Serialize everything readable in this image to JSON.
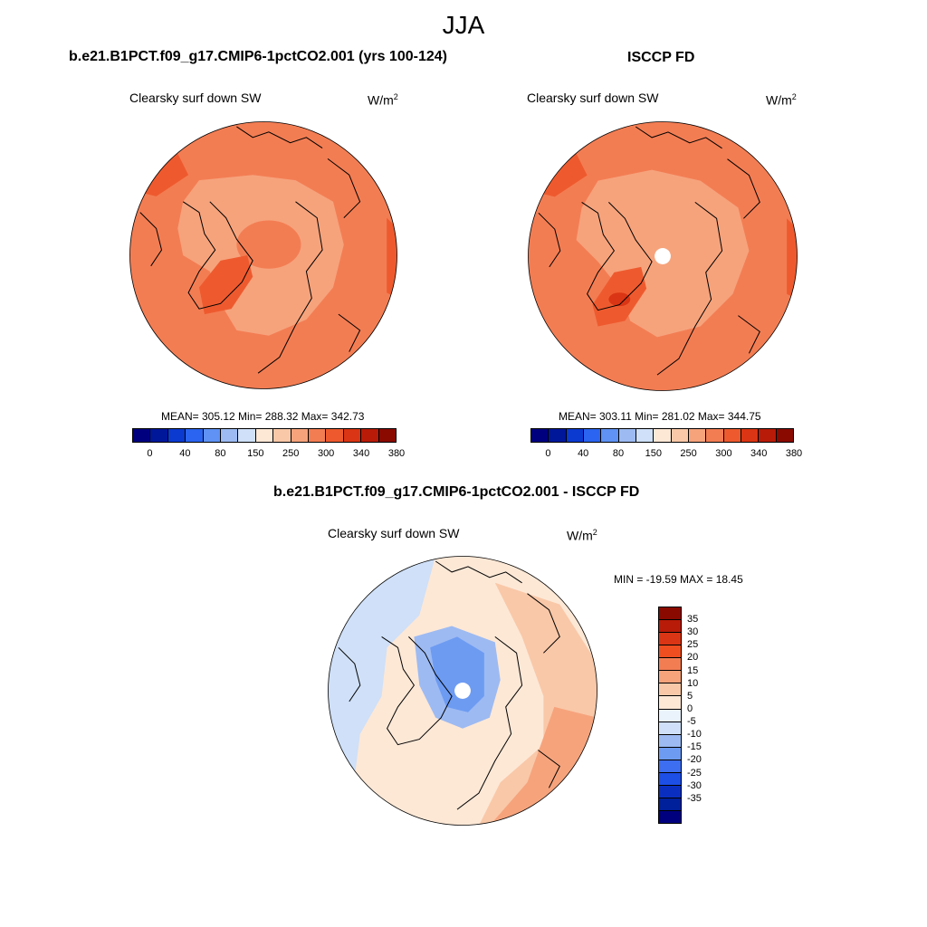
{
  "title": "JJA",
  "colors": {
    "abs_levels": [
      "#00007f",
      "#00179a",
      "#0a3ad0",
      "#2a64f0",
      "#5f92f4",
      "#9dbaf2",
      "#cfe0f8",
      "#fde8d6",
      "#f9c8a8",
      "#f6a37c",
      "#f37d53",
      "#ee5a2e",
      "#da3514",
      "#b81b08",
      "#8a0a00"
    ],
    "diff_levels": [
      "#8a0a00",
      "#b81b08",
      "#da3514",
      "#ee4e20",
      "#f37d53",
      "#f6a37c",
      "#f9c8a8",
      "#fde8d6",
      "#eaf2fb",
      "#cfe0f8",
      "#9dbaf2",
      "#6d9bf2",
      "#3d6df0",
      "#1d4ee6",
      "#0a2fc0",
      "#001f9a",
      "#00007f"
    ],
    "coast": "#000000",
    "missing": "#ffffff"
  },
  "chart_data": [
    {
      "type": "heatmap",
      "projection": "north-polar-stereographic",
      "title": "b.e21.B1PCT.f09_g17.CMIP6-1pctCO2.001 (yrs 100-124)",
      "subtitle": "Clearsky surf down SW",
      "units": "W/m",
      "units_sup": "2",
      "stats": {
        "mean": 305.12,
        "min": 288.32,
        "max": 342.73
      },
      "stats_text": "MEAN= 305.12  Min= 288.32  Max= 342.73",
      "colorbar": {
        "orientation": "horizontal",
        "n_colors": 15,
        "tick_labels": [
          "0",
          "40",
          "80",
          "150",
          "250",
          "300",
          "340",
          "380"
        ]
      }
    },
    {
      "type": "heatmap",
      "projection": "north-polar-stereographic",
      "title": "ISCCP FD",
      "subtitle": "Clearsky surf down SW",
      "units": "W/m",
      "units_sup": "2",
      "stats": {
        "mean": 303.11,
        "min": 281.02,
        "max": 344.75
      },
      "stats_text": "MEAN= 303.11  Min= 281.02  Max= 344.75",
      "colorbar": {
        "orientation": "horizontal",
        "n_colors": 15,
        "tick_labels": [
          "0",
          "40",
          "80",
          "150",
          "250",
          "300",
          "340",
          "380"
        ]
      }
    },
    {
      "type": "heatmap",
      "projection": "north-polar-stereographic",
      "title": "b.e21.B1PCT.f09_g17.CMIP6-1pctCO2.001 - ISCCP FD",
      "subtitle": "Clearsky surf down SW",
      "units": "W/m",
      "units_sup": "2",
      "stats": {
        "min": -19.59,
        "max": 18.45
      },
      "stats_text": "MIN = -19.59 MAX =  18.45",
      "colorbar": {
        "orientation": "vertical",
        "n_colors": 17,
        "tick_labels": [
          "35",
          "30",
          "25",
          "20",
          "15",
          "10",
          "5",
          "0",
          "-5",
          "-10",
          "-15",
          "-20",
          "-25",
          "-30",
          "-35"
        ]
      }
    }
  ]
}
